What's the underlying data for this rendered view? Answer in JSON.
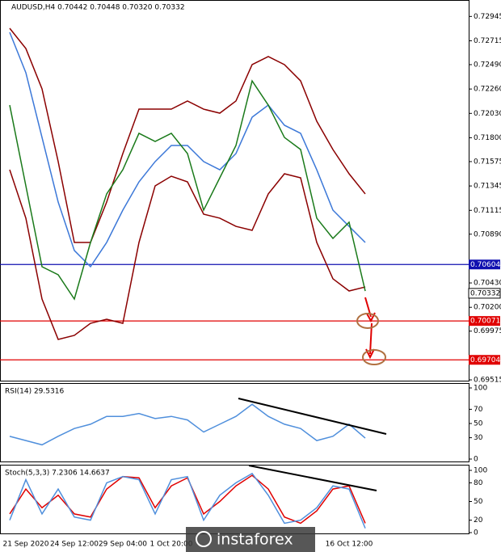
{
  "chart_data": [
    {
      "type": "line",
      "title": "AUDUSD,H4 0.70442 0.70448 0.70320 0.70332",
      "ylim": [
        0.695,
        0.731
      ],
      "yticks": [
        0.72945,
        0.72715,
        {
          "value": 0.7249,
          "label": "0.72490"
        },
        {
          "value": 0.7226,
          "label": "0.72260"
        },
        {
          "value": 0.7203,
          "label": "0.72030"
        },
        {
          "value": 0.718,
          "label": "0.71800"
        },
        0.71575,
        0.71345,
        0.71115,
        {
          "value": 0.7089,
          "label": "0.70890"
        },
        {
          "value": 0.7043,
          "label": "0.70430"
        },
        {
          "value": 0.702,
          "label": "0.70200"
        },
        0.69975,
        0.69515
      ],
      "series": [
        {
          "color": "#8b0000",
          "values": [
            0.72833,
            0.72642,
            0.72261,
            0.71575,
            0.70812,
            0.70812,
            0.71193,
            0.71651,
            0.7207,
            0.7207,
            0.7207,
            0.72147,
            0.7207,
            0.72032,
            0.72147,
            0.7249,
            0.72566,
            0.7249,
            0.72337,
            0.71956,
            0.71689,
            0.7146,
            0.7127
          ]
        },
        {
          "color": "#8b0000",
          "values": [
            0.71498,
            0.71041,
            0.70278,
            0.69897,
            0.69935,
            0.70049,
            0.70087,
            0.70049,
            0.70812,
            0.71346,
            0.71437,
            0.71384,
            0.71079,
            0.71041,
            0.70964,
            0.70926,
            0.7127,
            0.7146,
            0.71422,
            0.70812,
            0.70469,
            0.70354,
            0.70392
          ]
        },
        {
          "color": "#3c78d8",
          "values": [
            0.72795,
            0.72414,
            0.71803,
            0.71193,
            0.70736,
            0.70583,
            0.70812,
            0.71117,
            0.71384,
            0.71575,
            0.71727,
            0.71727,
            0.71575,
            0.71498,
            0.71651,
            0.71994,
            0.72108,
            0.71918,
            0.71842,
            0.71498,
            0.71117,
            0.70964,
            0.70812
          ]
        },
        {
          "color": "#1a7a1a",
          "values": [
            0.72108,
            0.71346,
            0.70583,
            0.70507,
            0.70278,
            0.70812,
            0.7127,
            0.71498,
            0.71842,
            0.71765,
            0.71842,
            0.71651,
            0.71117,
            0.71422,
            0.71727,
            0.72337,
            0.72108,
            0.71803,
            0.71689,
            0.71041,
            0.7085,
            0.71003,
            0.70354
          ]
        }
      ],
      "hlines": [
        {
          "value": 0.70604,
          "color": "#1010b0"
        },
        {
          "value": 0.70071,
          "color": "#e00000"
        },
        {
          "value": 0.69704,
          "color": "#e00000"
        }
      ],
      "last_price": 0.70332
    },
    {
      "type": "line",
      "title": "RSI(14) 29.5316",
      "ylim": [
        0,
        100
      ],
      "yticks": [
        100,
        70,
        50,
        30,
        0
      ],
      "series": [
        {
          "color": "#4f8fdc",
          "values": [
            32,
            26,
            20,
            32,
            43,
            49,
            60,
            60,
            64,
            57,
            60,
            55,
            38,
            49,
            60,
            77,
            60,
            49,
            43,
            26,
            32,
            49,
            29.5
          ]
        }
      ]
    },
    {
      "type": "line",
      "title": "Stoch(5,3,3) 7.2306 14.6637",
      "ylim": [
        0,
        100
      ],
      "yticks": [
        100,
        80,
        50,
        20,
        0
      ],
      "categories": [
        null,
        "21 Sep 2020",
        null,
        null,
        "24 Sep 12:00",
        null,
        null,
        "29 Sep 04:00",
        null,
        null,
        "1 Oct 20:00",
        null,
        null,
        null,
        null,
        null,
        null,
        null,
        null,
        null,
        null,
        "16 Oct 12:00",
        null
      ],
      "series": [
        {
          "color": "#e00000",
          "values": [
            30,
            70,
            40,
            60,
            30,
            25,
            70,
            90,
            88,
            40,
            75,
            88,
            30,
            50,
            75,
            92,
            70,
            25,
            15,
            35,
            70,
            75,
            15
          ]
        },
        {
          "color": "#4f8fdc",
          "values": [
            20,
            85,
            30,
            70,
            25,
            20,
            80,
            90,
            85,
            30,
            85,
            90,
            20,
            60,
            80,
            95,
            60,
            15,
            20,
            40,
            75,
            70,
            7
          ]
        }
      ]
    }
  ],
  "watermark": "instaforex"
}
